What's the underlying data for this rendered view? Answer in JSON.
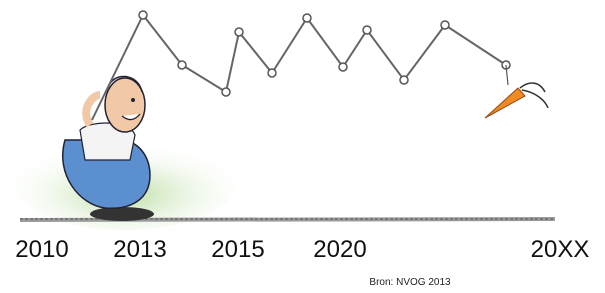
{
  "timeline": {
    "labels": [
      "2010",
      "2013",
      "2015",
      "2020",
      "20XX"
    ]
  },
  "source": "Bron: NVOG 2013"
}
